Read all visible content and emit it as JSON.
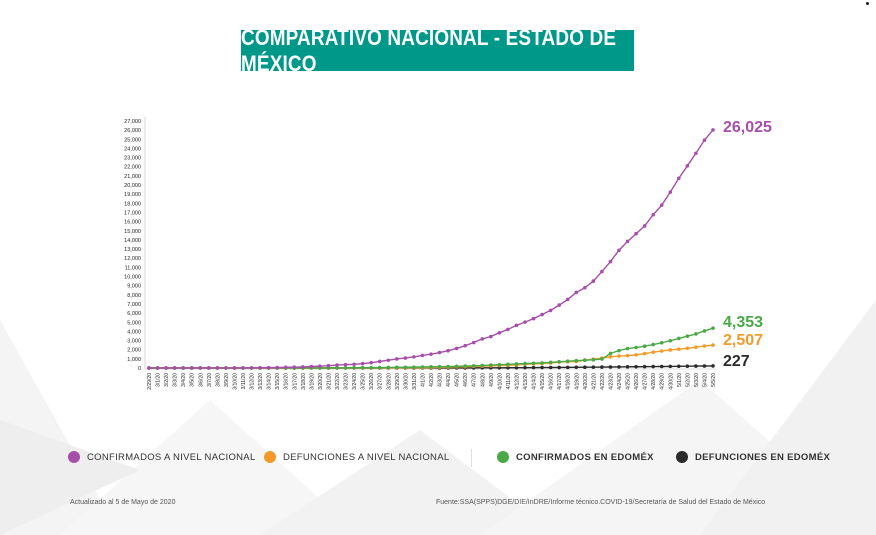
{
  "title": "COMPARATIVO NACIONAL - ESTADO DE MÉXICO",
  "legend": {
    "nacional_conf": "CONFIRMADOS A NIVEL NACIONAL",
    "nacional_def": "DEFUNCIONES A NIVEL NACIONAL",
    "edomex_conf": "CONFIRMADOS EN EDOMÉX",
    "edomex_def": "DEFUNCIONES EN EDOMÉX"
  },
  "footer": {
    "updated": "Actualizado al 5 de Mayo de 2020",
    "source": "Fuente:SSA(SPPS)DGE/DIE/InDRE/Informe técnico.COVID-19/Secretaría de Salud del Estado de México"
  },
  "chart_data": {
    "type": "line",
    "x": [
      "2/29/20",
      "3/1/20",
      "3/2/20",
      "3/3/20",
      "3/4/20",
      "3/5/20",
      "3/6/20",
      "3/7/20",
      "3/8/20",
      "3/9/20",
      "3/10/20",
      "3/11/20",
      "3/12/20",
      "3/13/20",
      "3/14/20",
      "3/15/20",
      "3/16/20",
      "3/17/20",
      "3/18/20",
      "3/19/20",
      "3/20/20",
      "3/21/20",
      "3/22/20",
      "3/23/20",
      "3/24/20",
      "3/25/20",
      "3/26/20",
      "3/27/20",
      "3/28/20",
      "3/29/20",
      "3/30/20",
      "3/31/20",
      "4/1/20",
      "4/2/20",
      "4/3/20",
      "4/4/20",
      "4/5/20",
      "4/6/20",
      "4/7/20",
      "4/8/20",
      "4/9/20",
      "4/10/20",
      "4/11/20",
      "4/12/20",
      "4/13/20",
      "4/14/20",
      "4/15/20",
      "4/16/20",
      "4/17/20",
      "4/18/20",
      "4/19/20",
      "4/20/20",
      "4/21/20",
      "4/22/20",
      "4/23/20",
      "4/24/20",
      "4/25/20",
      "4/26/20",
      "4/27/20",
      "4/28/20",
      "4/29/20",
      "4/30/20",
      "5/1/20",
      "5/2/20",
      "5/3/20",
      "5/4/20",
      "5/5/20"
    ],
    "yticks": [
      "0",
      "1,000",
      "2,000",
      "3,000",
      "4,000",
      "5,000",
      "6,000",
      "7,000",
      "8,000",
      "9,000",
      "10,000",
      "11,000",
      "12,000",
      "13,000",
      "14,000",
      "15,000",
      "16,000",
      "17,000",
      "18,000",
      "19,000",
      "20,000",
      "21,000",
      "22,000",
      "23,000",
      "24,000",
      "25,000",
      "26,000",
      "27,000"
    ],
    "ylim": [
      0,
      27000
    ],
    "series": [
      {
        "key": "nacional_conf",
        "color": "#a64ea9",
        "values": [
          4,
          5,
          5,
          5,
          5,
          5,
          7,
          7,
          7,
          7,
          7,
          12,
          15,
          26,
          41,
          53,
          82,
          93,
          118,
          164,
          203,
          251,
          316,
          367,
          405,
          475,
          585,
          717,
          848,
          993,
          1094,
          1215,
          1378,
          1510,
          1688,
          1890,
          2143,
          2439,
          2785,
          3181,
          3441,
          3844,
          4219,
          4661,
          5014,
          5399,
          5847,
          6297,
          6875,
          7497,
          8261,
          8772,
          9501,
          10544,
          11633,
          12872,
          13842,
          14677,
          15529,
          16752,
          17799,
          19224,
          20739,
          22088,
          23471,
          24905,
          26025
        ],
        "end_label": "26,025"
      },
      {
        "key": "edomex_conf",
        "color": "#4aa846",
        "values": [
          0,
          0,
          0,
          0,
          0,
          0,
          0,
          0,
          0,
          0,
          0,
          0,
          0,
          2,
          3,
          3,
          5,
          6,
          8,
          10,
          12,
          15,
          20,
          25,
          30,
          36,
          42,
          50,
          60,
          70,
          82,
          95,
          110,
          125,
          140,
          160,
          180,
          210,
          240,
          280,
          320,
          360,
          400,
          440,
          480,
          520,
          560,
          620,
          680,
          740,
          800,
          850,
          900,
          980,
          1600,
          1900,
          2120,
          2240,
          2380,
          2560,
          2760,
          2980,
          3230,
          3480,
          3720,
          4050,
          4353
        ],
        "end_label": "4,353"
      },
      {
        "key": "nacional_def",
        "color": "#f39a2b",
        "values": [
          0,
          0,
          0,
          0,
          0,
          0,
          0,
          0,
          0,
          0,
          0,
          0,
          0,
          0,
          0,
          0,
          0,
          0,
          1,
          1,
          2,
          2,
          4,
          5,
          6,
          8,
          12,
          16,
          20,
          28,
          29,
          29,
          37,
          50,
          79,
          94,
          125,
          141,
          174,
          194,
          233,
          273,
          296,
          332,
          406,
          449,
          486,
          546,
          650,
          686,
          712,
          857,
          970,
          1069,
          1221,
          1305,
          1351,
          1434,
          1569,
          1732,
          1859,
          1972,
          2061,
          2154,
          2271,
          2404,
          2507
        ],
        "end_label": "2,507"
      },
      {
        "key": "edomex_def",
        "color": "#2b2b2b",
        "values": [
          0,
          0,
          0,
          0,
          0,
          0,
          0,
          0,
          0,
          0,
          0,
          0,
          0,
          0,
          0,
          0,
          0,
          0,
          0,
          0,
          0,
          0,
          0,
          0,
          0,
          0,
          1,
          1,
          2,
          2,
          3,
          3,
          4,
          5,
          6,
          8,
          10,
          12,
          14,
          16,
          20,
          24,
          28,
          32,
          36,
          42,
          48,
          54,
          60,
          68,
          76,
          84,
          92,
          100,
          110,
          120,
          128,
          136,
          145,
          155,
          165,
          175,
          186,
          197,
          208,
          218,
          227
        ],
        "end_label": "227"
      }
    ],
    "legend_placement": "bottom",
    "grid": false
  }
}
